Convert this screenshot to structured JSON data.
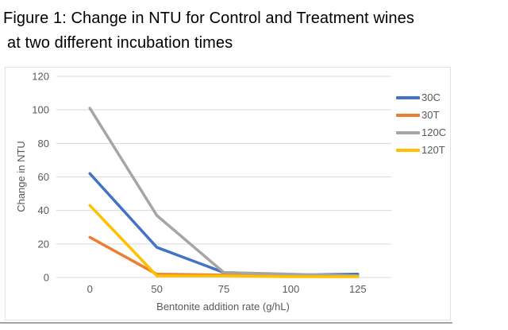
{
  "figure": {
    "title_line1": "Figure 1: Change in NTU for Control and Treatment wines",
    "title_line2": "at two different incubation times"
  },
  "chart_data": {
    "type": "line",
    "title": "Figure 1: Change in NTU for Control and Treatment wines at two different incubation times",
    "xlabel": "Bentonite addition rate (g/hL)",
    "ylabel": "Change in NTU",
    "x_categories": [
      "0",
      "50",
      "75",
      "100",
      "125"
    ],
    "y_ticks": [
      0,
      20,
      40,
      60,
      80,
      100,
      120
    ],
    "ylim": [
      0,
      120
    ],
    "grid": "horizontal",
    "legend_position": "right",
    "series": [
      {
        "name": "30C",
        "color": "#4472C4",
        "values": [
          62,
          18,
          3,
          1.5,
          2
        ]
      },
      {
        "name": "30T",
        "color": "#ED7D31",
        "values": [
          24,
          2,
          1.5,
          1,
          1
        ]
      },
      {
        "name": "120C",
        "color": "#A5A5A5",
        "values": [
          101,
          37,
          3,
          2,
          1
        ]
      },
      {
        "name": "120T",
        "color": "#FFC000",
        "values": [
          43,
          1,
          1,
          0.5,
          0.5
        ]
      }
    ]
  },
  "colors": {
    "grid": "#D9D9D9",
    "axis_line": "#D9D9D9",
    "axis_text": "#595959",
    "legend_text": "#595959",
    "title_text": "#000000",
    "chart_border": "#E2E2E2",
    "bottom_rule": "#A3A3A3"
  }
}
